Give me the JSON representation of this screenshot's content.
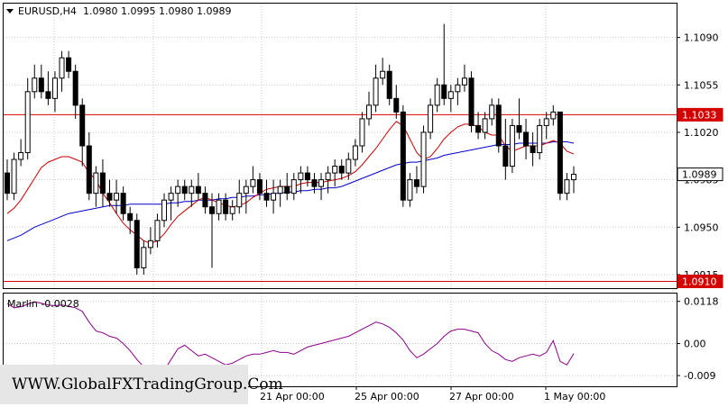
{
  "header": {
    "symbol": "EURUSD,H4",
    "ohlc": "1.0980 1.0995 1.0980 1.0989"
  },
  "watermark": "WWW.GlobalFXTradingGroup.Com",
  "colors": {
    "background": "#ffffff",
    "grid": "#c8c8c8",
    "level_line": "#d40000",
    "fast_ma": "#cc0000",
    "slow_ma": "#0000cc",
    "marlin": "#8b008b",
    "candle_bull": "#ffffff",
    "candle_bear": "#000000"
  },
  "chart_data": [
    {
      "type": "candlestick",
      "title": "EURUSD,H4",
      "ylim": [
        1.0905,
        1.1115
      ],
      "y_ticks": [
        "1.1090",
        "1.1055",
        "1.1020",
        "1.0985",
        "1.0950",
        "1.0915"
      ],
      "x_ticks": [
        "21 Apr 00:00",
        "25 Apr 00:00",
        "27 Apr 00:00",
        "1 May 00:00"
      ],
      "price_labels": {
        "upper_level": "1.1033",
        "current": "1.0989",
        "lower_level": "1.0910"
      },
      "levels": [
        1.1033,
        1.091
      ],
      "current_price": 1.0989,
      "candles": [
        [
          1.099,
          1.1,
          1.097,
          1.0975
        ],
        [
          1.0975,
          1.1005,
          1.097,
          1.1
        ],
        [
          1.1,
          1.1015,
          1.0995,
          1.1005
        ],
        [
          1.1005,
          1.106,
          1.1,
          1.105
        ],
        [
          1.105,
          1.107,
          1.1045,
          1.106
        ],
        [
          1.106,
          1.107,
          1.1045,
          1.105
        ],
        [
          1.105,
          1.1065,
          1.104,
          1.1045
        ],
        [
          1.1045,
          1.1065,
          1.1035,
          1.106
        ],
        [
          1.106,
          1.108,
          1.105,
          1.1075
        ],
        [
          1.1075,
          1.108,
          1.106,
          1.1065
        ],
        [
          1.1065,
          1.107,
          1.103,
          1.104
        ],
        [
          1.104,
          1.1045,
          1.0995,
          1.101
        ],
        [
          1.101,
          1.102,
          1.097,
          1.0975
        ],
        [
          1.0975,
          1.0995,
          1.0965,
          1.099
        ],
        [
          1.099,
          1.1,
          1.0965,
          1.0975
        ],
        [
          1.0975,
          1.0985,
          1.0965,
          1.097
        ],
        [
          1.097,
          1.0985,
          1.096,
          1.0975
        ],
        [
          1.0975,
          1.098,
          1.0955,
          1.096
        ],
        [
          1.096,
          1.0965,
          1.0945,
          1.0955
        ],
        [
          1.0955,
          1.096,
          1.0915,
          1.092
        ],
        [
          1.092,
          1.094,
          1.0915,
          1.0935
        ],
        [
          1.0935,
          1.095,
          1.093,
          1.094
        ],
        [
          1.094,
          1.096,
          1.0935,
          1.0955
        ],
        [
          1.0955,
          1.0975,
          1.095,
          1.097
        ],
        [
          1.097,
          1.098,
          1.0955,
          1.0975
        ],
        [
          1.0975,
          1.0985,
          1.0965,
          1.098
        ],
        [
          1.098,
          1.0985,
          1.097,
          1.0975
        ],
        [
          1.0975,
          1.0985,
          1.0965,
          1.098
        ],
        [
          1.098,
          1.099,
          1.097,
          1.0975
        ],
        [
          1.0975,
          1.098,
          1.096,
          1.0965
        ],
        [
          1.0965,
          1.0975,
          1.092,
          1.096
        ],
        [
          1.096,
          1.0975,
          1.0955,
          1.097
        ],
        [
          1.097,
          1.0975,
          1.0955,
          1.096
        ],
        [
          1.096,
          1.097,
          1.0955,
          1.0965
        ],
        [
          1.0965,
          1.0985,
          1.096,
          1.0975
        ],
        [
          1.0975,
          1.0985,
          1.096,
          1.098
        ],
        [
          1.098,
          1.0995,
          1.0975,
          1.0985
        ],
        [
          1.0985,
          1.099,
          1.097,
          1.0975
        ],
        [
          1.0975,
          1.0985,
          1.0965,
          1.097
        ],
        [
          1.097,
          1.0985,
          1.096,
          1.0975
        ],
        [
          1.0975,
          1.0985,
          1.0965,
          1.098
        ],
        [
          1.098,
          1.099,
          1.097,
          1.0975
        ],
        [
          1.0975,
          1.099,
          1.097,
          1.0985
        ],
        [
          1.0985,
          1.0995,
          1.0975,
          1.099
        ],
        [
          1.099,
          1.0995,
          1.098,
          1.0985
        ],
        [
          1.0985,
          1.099,
          1.0975,
          1.098
        ],
        [
          1.098,
          1.099,
          1.097,
          1.0985
        ],
        [
          1.0985,
          1.0995,
          1.0975,
          1.099
        ],
        [
          1.099,
          1.1,
          1.098,
          1.0995
        ],
        [
          1.0995,
          1.1,
          1.0985,
          1.099
        ],
        [
          1.099,
          1.1005,
          1.0985,
          1.1
        ],
        [
          1.1,
          1.1015,
          1.0995,
          1.101
        ],
        [
          1.101,
          1.1035,
          1.1005,
          1.103
        ],
        [
          1.103,
          1.105,
          1.1025,
          1.104
        ],
        [
          1.104,
          1.107,
          1.1035,
          1.106
        ],
        [
          1.106,
          1.1075,
          1.1055,
          1.1065
        ],
        [
          1.1065,
          1.107,
          1.104,
          1.1045
        ],
        [
          1.1045,
          1.1055,
          1.103,
          1.1035
        ],
        [
          1.1035,
          1.104,
          1.0965,
          1.097
        ],
        [
          1.097,
          1.099,
          1.0965,
          1.0985
        ],
        [
          1.0985,
          1.0995,
          1.0975,
          1.098
        ],
        [
          1.098,
          1.1025,
          1.0975,
          1.102
        ],
        [
          1.102,
          1.1045,
          1.1015,
          1.104
        ],
        [
          1.104,
          1.106,
          1.1035,
          1.1055
        ],
        [
          1.1055,
          1.11,
          1.104,
          1.1045
        ],
        [
          1.1045,
          1.1055,
          1.1035,
          1.105
        ],
        [
          1.105,
          1.106,
          1.104,
          1.1055
        ],
        [
          1.1055,
          1.107,
          1.105,
          1.106
        ],
        [
          1.106,
          1.1065,
          1.102,
          1.1025
        ],
        [
          1.1025,
          1.1035,
          1.1015,
          1.102
        ],
        [
          1.102,
          1.1035,
          1.1015,
          1.103
        ],
        [
          1.103,
          1.1045,
          1.1025,
          1.104
        ],
        [
          1.104,
          1.1045,
          1.1005,
          1.101
        ],
        [
          1.101,
          1.103,
          1.0985,
          1.0995
        ],
        [
          1.0995,
          1.103,
          1.099,
          1.1025
        ],
        [
          1.1025,
          1.1045,
          1.1015,
          1.102
        ],
        [
          1.102,
          1.103,
          1.1,
          1.101
        ],
        [
          1.101,
          1.102,
          1.0995,
          1.1005
        ],
        [
          1.1005,
          1.103,
          1.1,
          1.1025
        ],
        [
          1.1025,
          1.1035,
          1.1015,
          1.103
        ],
        [
          1.103,
          1.104,
          1.1025,
          1.1035
        ],
        [
          1.1035,
          1.1035,
          1.097,
          1.0975
        ],
        [
          1.0975,
          1.099,
          1.097,
          1.0985
        ],
        [
          1.0985,
          1.0995,
          1.0975,
          1.0989
        ]
      ],
      "fast_ma": [
        1.096,
        1.0964,
        1.097,
        1.0978,
        1.0986,
        1.0994,
        1.0998,
        1.1,
        1.1002,
        1.1002,
        1.1,
        1.0998,
        1.099,
        1.0985,
        1.0975,
        1.0968,
        1.096,
        1.0953,
        1.0948,
        1.0944,
        1.094,
        1.0938,
        1.094,
        1.0945,
        1.0952,
        1.0958,
        1.0962,
        1.0966,
        1.097,
        1.0972,
        1.097,
        1.0968,
        1.0966,
        1.0965,
        1.0966,
        1.0968,
        1.0972,
        1.0975,
        1.0978,
        1.0979,
        1.098,
        1.098,
        1.098,
        1.0982,
        1.0983,
        1.0983,
        1.0983,
        1.0984,
        1.0985,
        1.0986,
        1.0988,
        1.0991,
        1.0996,
        1.1002,
        1.1008,
        1.1015,
        1.1022,
        1.1028,
        1.1025,
        1.1015,
        1.1005,
        1.1,
        1.1002,
        1.1008,
        1.1015,
        1.102,
        1.1024,
        1.1026,
        1.1026,
        1.1024,
        1.102,
        1.1018,
        1.1018,
        1.101,
        1.1006,
        1.1008,
        1.101,
        1.101,
        1.101,
        1.1012,
        1.1014,
        1.1012,
        1.1006,
        1.1004
      ],
      "slow_ma": [
        1.094,
        1.0942,
        1.0944,
        1.0947,
        1.095,
        1.0952,
        1.0954,
        1.0956,
        1.0958,
        1.096,
        1.0961,
        1.0962,
        1.0963,
        1.0964,
        1.0965,
        1.0966,
        1.0966,
        1.0966,
        1.0967,
        1.0967,
        1.0967,
        1.0967,
        1.0967,
        1.0967,
        1.0968,
        1.0968,
        1.0969,
        1.0969,
        1.097,
        1.097,
        1.097,
        1.0971,
        1.0971,
        1.0972,
        1.0972,
        1.0973,
        1.0973,
        1.0974,
        1.0974,
        1.0975,
        1.0975,
        1.0976,
        1.0976,
        1.0977,
        1.0977,
        1.0978,
        1.0978,
        1.0979,
        1.0979,
        1.098,
        1.0982,
        1.0984,
        1.0986,
        1.0988,
        1.099,
        1.0992,
        1.0994,
        1.0996,
        1.0997,
        1.0998,
        1.0998,
        1.0999,
        1.1,
        1.1001,
        1.1003,
        1.1004,
        1.1005,
        1.1006,
        1.1007,
        1.1008,
        1.1009,
        1.101,
        1.1011,
        1.1011,
        1.1011,
        1.1012,
        1.1012,
        1.1012,
        1.1012,
        1.1012,
        1.1013,
        1.1013,
        1.1013,
        1.1012
      ]
    },
    {
      "type": "line",
      "title": "Marlin -0.0028",
      "ylim": [
        -0.012,
        0.014
      ],
      "y_ticks": [
        "0.0118",
        "0.00",
        "-0.009"
      ],
      "series": [
        {
          "name": "Marlin",
          "values": [
            0.0112,
            0.01,
            0.0103,
            0.011,
            0.0117,
            0.0113,
            0.0108,
            0.0106,
            0.0108,
            0.0104,
            0.01,
            0.009,
            0.006,
            0.0035,
            0.003,
            0.002,
            0.0015,
            0.0,
            -0.002,
            -0.0045,
            -0.0065,
            -0.008,
            -0.009,
            -0.0075,
            -0.0045,
            -0.0015,
            -0.0005,
            -0.002,
            -0.0035,
            -0.003,
            -0.004,
            -0.005,
            -0.006,
            -0.0055,
            -0.0045,
            -0.0035,
            -0.003,
            -0.003,
            -0.0025,
            -0.002,
            -0.0025,
            -0.0025,
            -0.003,
            -0.002,
            -0.001,
            -0.0005,
            0.0,
            0.0005,
            0.001,
            0.0015,
            0.002,
            0.003,
            0.004,
            0.005,
            0.006,
            0.0055,
            0.0045,
            0.003,
            0.001,
            -0.002,
            -0.004,
            -0.003,
            -0.0015,
            0.0,
            0.002,
            0.0035,
            0.004,
            0.004,
            0.0035,
            0.003,
            0.0,
            -0.002,
            -0.003,
            -0.0045,
            -0.005,
            -0.004,
            -0.0035,
            -0.003,
            -0.0035,
            -0.0025,
            0.0008,
            -0.005,
            -0.006,
            -0.0028
          ]
        }
      ]
    }
  ]
}
